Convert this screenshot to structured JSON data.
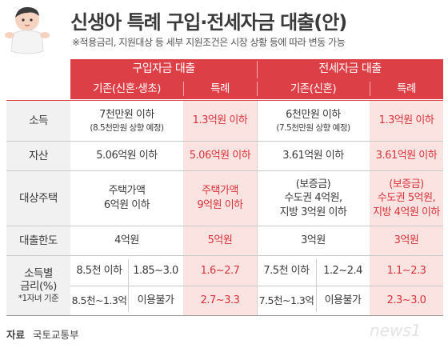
{
  "title": "신생아 특례 구입·전세자금 대출(안)",
  "subtitle": "※적용금리, 지원대상 등 세부 지원조건은 시장 상황 등에 따라 변동 가능",
  "table": {
    "purchase_header": "구입자금 대출",
    "jeonse_header": "전세자금 대출",
    "sub_purchase_existing": "기존(신혼·생초)",
    "sub_purchase_special": "특례",
    "sub_jeonse_existing": "기존(신혼)",
    "sub_jeonse_special": "특례",
    "rows": {
      "income": {
        "label": "소득",
        "p_exist_main": "7천만원 이하",
        "p_exist_note": "(8.5천만원 상향 예정)",
        "p_special": "1.3억원 이하",
        "j_exist_main": "6천만원 이하",
        "j_exist_note": "(7.5천만원 상향 예정)",
        "j_special": "1.3억원 이하"
      },
      "assets": {
        "label": "자산",
        "p_exist": "5.06억원 이하",
        "p_special": "5.06억원 이하",
        "j_exist": "3.61억원 이하",
        "j_special": "3.61억원 이하"
      },
      "housing": {
        "label": "대상주택",
        "p_exist_l1": "주택가액",
        "p_exist_l2": "6억원 이하",
        "p_special_l1": "주택가액",
        "p_special_l2": "9억원 이하",
        "j_exist_l1": "(보증금)",
        "j_exist_l2": "수도권 4억원,",
        "j_exist_l3": "지방 3억원 이하",
        "j_special_l1": "(보증금)",
        "j_special_l2": "수도권 5억원,",
        "j_special_l3": "지방 4억원 이하"
      },
      "limit": {
        "label": "대출한도",
        "p_exist": "4억원",
        "p_special": "5억원",
        "j_exist": "3억원",
        "j_special": "3억원"
      },
      "rate": {
        "label_l1": "소득별",
        "label_l2": "금리(%)",
        "label_note": "*1자녀 기준",
        "r1": {
          "p_income": "8.5천 이하",
          "p_rate": "1.85~3.0",
          "p_special": "1.6~2.7",
          "j_income": "7.5천 이하",
          "j_rate": "1.2~2.4",
          "j_special": "1.1~2.3"
        },
        "r2": {
          "p_income": "8.5천~1.3억",
          "p_rate": "이용불가",
          "p_special": "2.7~3.3",
          "j_income": "7.5천~1.3억",
          "j_rate": "이용불가",
          "j_special": "2.3~3.0"
        }
      }
    }
  },
  "footer": {
    "source_label": "자료",
    "source_value": "국토교통부"
  },
  "logo_text": "news1",
  "colors": {
    "accent_red": "#dc3f46",
    "special_bg": "#fbe3e2",
    "special_text": "#d8323a",
    "label_bg": "#f1f1f1"
  }
}
